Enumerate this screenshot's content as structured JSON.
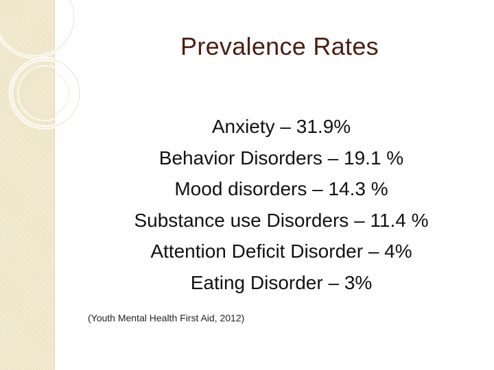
{
  "slide": {
    "title": "Prevalence Rates",
    "items": [
      "Anxiety – 31.9%",
      "Behavior Disorders – 19.1 %",
      "Mood disorders – 14.3 %",
      "Substance use Disorders – 11.4 %",
      "Attention Deficit Disorder – 4%",
      "Eating Disorder – 3%"
    ],
    "citation": "(Youth Mental Health First Aid, 2012)"
  },
  "colors": {
    "title": "#4a1e10",
    "text": "#111111",
    "band": "#f1e8cc"
  }
}
